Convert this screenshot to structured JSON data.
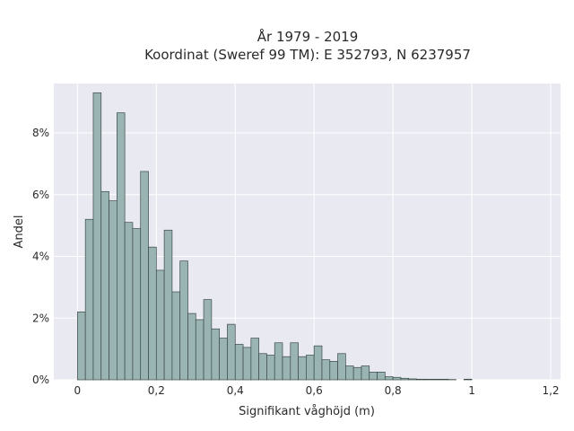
{
  "chart_data": {
    "type": "bar",
    "title_lines": [
      "År 1979 - 2019",
      "Koordinat (Sweref 99 TM): E 352793, N 6237957"
    ],
    "xlabel": "Signifikant våghöjd (m)",
    "ylabel": "Andel",
    "xlim": [
      -0.06,
      1.225
    ],
    "ylim": [
      0,
      9.6
    ],
    "x_ticks": [
      {
        "value": 0,
        "label": "0"
      },
      {
        "value": 0.2,
        "label": "0,2"
      },
      {
        "value": 0.4,
        "label": "0,4"
      },
      {
        "value": 0.6,
        "label": "0,6"
      },
      {
        "value": 0.8,
        "label": "0,8"
      },
      {
        "value": 1.0,
        "label": "1"
      },
      {
        "value": 1.2,
        "label": "1,2"
      }
    ],
    "y_ticks": [
      {
        "value": 0,
        "label": "0%"
      },
      {
        "value": 2,
        "label": "2%"
      },
      {
        "value": 4,
        "label": "4%"
      },
      {
        "value": 6,
        "label": "6%"
      },
      {
        "value": 8,
        "label": "8%"
      }
    ],
    "bin_start": 0,
    "bin_width": 0.02,
    "values": [
      2.2,
      5.2,
      9.3,
      6.1,
      5.8,
      8.65,
      5.1,
      4.9,
      6.75,
      4.3,
      3.55,
      4.85,
      2.85,
      3.85,
      2.15,
      1.95,
      2.6,
      1.65,
      1.35,
      1.8,
      1.15,
      1.05,
      1.35,
      0.85,
      0.8,
      1.2,
      0.75,
      1.2,
      0.75,
      0.8,
      1.1,
      0.65,
      0.6,
      0.85,
      0.45,
      0.4,
      0.45,
      0.25,
      0.25,
      0.1,
      0.08,
      0.05,
      0.03,
      0.02,
      0.02,
      0.02,
      0.02,
      0.01,
      0,
      0.02
    ],
    "bar_color": "#9ab4b3",
    "bar_edge_color": "#3b4a48",
    "plot_background": "#e9e9f1",
    "grid": true,
    "grid_color": "#ffffff"
  }
}
